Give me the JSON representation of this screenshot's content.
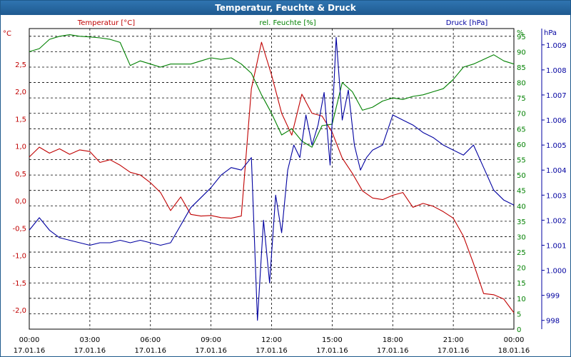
{
  "title": "Temperatur, Feuchte & Druck",
  "chart_data": {
    "type": "line",
    "title": "Temperatur, Feuchte & Druck",
    "grid": true,
    "x_range_hours": [
      0,
      24
    ],
    "x_ticks": [
      {
        "time": "00:00",
        "date": "17.01.16"
      },
      {
        "time": "03:00",
        "date": "17.01.16"
      },
      {
        "time": "06:00",
        "date": "17.01.16"
      },
      {
        "time": "09:00",
        "date": "17.01.16"
      },
      {
        "time": "12:00",
        "date": "17.01.16"
      },
      {
        "time": "15:00",
        "date": "17.01.16"
      },
      {
        "time": "18:00",
        "date": "17.01.16"
      },
      {
        "time": "21:00",
        "date": "17.01.16"
      },
      {
        "time": "00:00",
        "date": "18.01.16"
      }
    ],
    "axes": {
      "temperature": {
        "label": "Temperatur [°C]",
        "unit": "°C",
        "range": [
          -2.35,
          3.15
        ],
        "color": "#c00000",
        "ticks": [
          "2,5",
          "2,0",
          "1,5",
          "1,0",
          "0,5",
          "0,0",
          "-0,5",
          "-1,0",
          "-1,5",
          "-2,0"
        ],
        "tick_values": [
          2.5,
          2.0,
          1.5,
          1.0,
          0.5,
          0.0,
          -0.5,
          -1.0,
          -1.5,
          -2.0
        ]
      },
      "humidity": {
        "label": "rel. Feuchte [%]",
        "unit": "%",
        "range": [
          0,
          97.5
        ],
        "color": "#008000",
        "ticks": [
          "95",
          "90",
          "85",
          "80",
          "75",
          "70",
          "65",
          "60",
          "55",
          "50",
          "45",
          "40",
          "35",
          "30",
          "25",
          "20",
          "15",
          "10",
          "5",
          "0"
        ],
        "tick_values": [
          95,
          90,
          85,
          80,
          75,
          70,
          65,
          60,
          55,
          50,
          45,
          40,
          35,
          30,
          25,
          20,
          15,
          10,
          5,
          0
        ]
      },
      "pressure": {
        "label": "Druck [hPa]",
        "unit": "hPa",
        "range": [
          997.65,
          1009.65
        ],
        "color": "#0000a0",
        "ticks": [
          "1.009",
          "1.008",
          "1.007",
          "1.006",
          "1.005",
          "1.004",
          "1.003",
          "1.002",
          "1.001",
          "1.000",
          "999",
          "998"
        ],
        "tick_values": [
          1009,
          1008,
          1007,
          1006,
          1005,
          1004,
          1003,
          1002,
          1001,
          1000,
          999,
          998
        ]
      }
    },
    "series": [
      {
        "name": "Temperatur [°C]",
        "axis": "temperature",
        "color": "#c00000",
        "x": [
          0,
          0.5,
          1,
          1.5,
          2,
          2.5,
          3,
          3.5,
          4,
          4.5,
          5,
          5.5,
          6,
          6.5,
          7,
          7.5,
          8,
          8.5,
          9,
          9.5,
          10,
          10.5,
          11,
          11.5,
          12,
          12.5,
          13,
          13.5,
          14,
          14.5,
          15,
          15.5,
          16,
          16.5,
          17,
          17.5,
          18,
          18.5,
          19,
          19.5,
          20,
          20.5,
          21,
          21.5,
          22,
          22.5,
          23,
          23.5,
          24
        ],
        "y": [
          0.8,
          0.98,
          0.87,
          0.95,
          0.85,
          0.93,
          0.9,
          0.7,
          0.75,
          0.65,
          0.52,
          0.47,
          0.33,
          0.15,
          -0.18,
          0.07,
          -0.25,
          -0.28,
          -0.27,
          -0.31,
          -0.32,
          -0.28,
          2.05,
          2.9,
          2.3,
          1.6,
          1.2,
          1.95,
          1.6,
          1.55,
          1.25,
          0.78,
          0.5,
          0.18,
          0.05,
          0.02,
          0.1,
          0.15,
          -0.12,
          -0.05,
          -0.1,
          -0.2,
          -0.32,
          -0.65,
          -1.15,
          -1.7,
          -1.72,
          -1.8,
          -2.05
        ]
      },
      {
        "name": "rel. Feuchte [%]",
        "axis": "humidity",
        "color": "#008000",
        "x": [
          0,
          0.5,
          1,
          1.5,
          2,
          2.5,
          3,
          3.5,
          4,
          4.5,
          5,
          5.5,
          6,
          6.5,
          7,
          7.5,
          8,
          8.5,
          9,
          9.5,
          10,
          10.5,
          11,
          11.5,
          12,
          12.5,
          13,
          13.5,
          14,
          14.5,
          15,
          15.5,
          16,
          16.5,
          17,
          17.5,
          18,
          18.5,
          19,
          19.5,
          20,
          20.5,
          21,
          21.5,
          22,
          22.5,
          23,
          23.5,
          24
        ],
        "y": [
          90,
          91,
          94,
          95,
          95.5,
          95,
          94.8,
          94.5,
          94,
          93,
          85.5,
          87,
          86,
          85,
          86,
          86,
          86,
          87,
          88,
          87.5,
          88,
          86,
          83,
          76,
          70,
          63,
          65,
          61,
          59,
          66,
          66.5,
          80,
          77,
          71,
          72,
          74,
          75,
          74.5,
          75.5,
          76,
          77,
          78,
          81,
          85,
          86,
          87.5,
          89,
          87,
          86
        ]
      },
      {
        "name": "Druck [hPa]",
        "axis": "pressure",
        "color": "#0000a0",
        "x": [
          0,
          0.5,
          1,
          1.5,
          2,
          2.5,
          3,
          3.5,
          4,
          4.5,
          5,
          5.5,
          6,
          6.5,
          7,
          7.5,
          8,
          8.5,
          9,
          9.5,
          10,
          10.5,
          11,
          11.3,
          11.6,
          11.9,
          12.2,
          12.5,
          12.8,
          13.1,
          13.4,
          13.7,
          14,
          14.3,
          14.6,
          14.9,
          15.2,
          15.5,
          15.8,
          16.1,
          16.4,
          16.7,
          17,
          17.5,
          18,
          18.5,
          19,
          19.5,
          20,
          20.5,
          21,
          21.5,
          22,
          22.5,
          23,
          23.5,
          24
        ],
        "y": [
          1001.6,
          1002.1,
          1001.6,
          1001.3,
          1001.2,
          1001.1,
          1001.0,
          1001.1,
          1001.1,
          1001.2,
          1001.1,
          1001.2,
          1001.1,
          1001.0,
          1001.1,
          1001.8,
          1002.5,
          1002.9,
          1003.3,
          1003.8,
          1004.1,
          1004.0,
          1004.5,
          998.0,
          1002.0,
          999.5,
          1003.0,
          1001.5,
          1004.0,
          1005.0,
          1004.5,
          1006.2,
          1005.0,
          1005.8,
          1007.1,
          1004.2,
          1009.3,
          1006.0,
          1007.2,
          1005.0,
          1004.0,
          1004.5,
          1004.8,
          1005.0,
          1006.2,
          1006.0,
          1005.8,
          1005.5,
          1005.3,
          1005.0,
          1004.8,
          1004.6,
          1005.0,
          1004.1,
          1003.2,
          1002.8,
          1002.6
        ]
      }
    ]
  }
}
